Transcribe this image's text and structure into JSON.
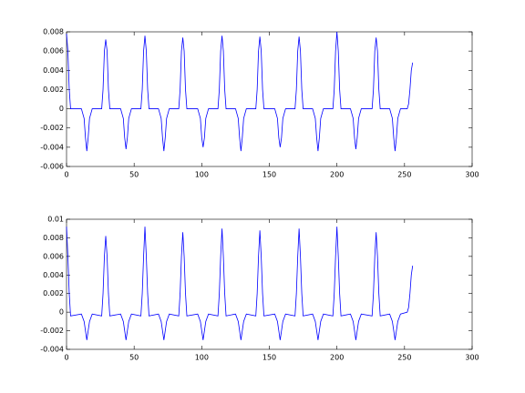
{
  "chart_data": [
    {
      "type": "line",
      "color": "#0000ff",
      "x": [
        0,
        1,
        2,
        3,
        11,
        13,
        14,
        15,
        16,
        17,
        19,
        26,
        27,
        28,
        29,
        30,
        31,
        32,
        40,
        42,
        43,
        44,
        45,
        46,
        48,
        55,
        56,
        57,
        58,
        59,
        60,
        61,
        68,
        70,
        71,
        72,
        73,
        74,
        76,
        83,
        84,
        85,
        86,
        87,
        88,
        89,
        97,
        99,
        100,
        101,
        102,
        103,
        105,
        112,
        113,
        114,
        115,
        116,
        117,
        118,
        125,
        127,
        128,
        129,
        130,
        131,
        133,
        140,
        141,
        142,
        143,
        144,
        145,
        146,
        154,
        156,
        157,
        158,
        159,
        160,
        162,
        169,
        170,
        171,
        172,
        173,
        174,
        175,
        182,
        184,
        185,
        186,
        187,
        188,
        190,
        197,
        198,
        199,
        200,
        201,
        202,
        203,
        210,
        212,
        213,
        214,
        215,
        216,
        218,
        226,
        227,
        228,
        229,
        230,
        231,
        232,
        239,
        241,
        242,
        243,
        244,
        245,
        247,
        252,
        253,
        254,
        255,
        256
      ],
      "values": [
        0.0078,
        0.006,
        0.002,
        0,
        0,
        -0.001,
        -0.003,
        -0.0044,
        -0.003,
        -0.001,
        0,
        0,
        0.002,
        0.006,
        0.0072,
        0.006,
        0.002,
        0,
        0,
        -0.001,
        -0.003,
        -0.0042,
        -0.003,
        -0.001,
        0,
        0,
        0.002,
        0.006,
        0.0076,
        0.006,
        0.002,
        0,
        0,
        -0.001,
        -0.003,
        -0.0044,
        -0.003,
        -0.001,
        0,
        0,
        0.002,
        0.006,
        0.0074,
        0.006,
        0.002,
        0,
        0,
        -0.001,
        -0.003,
        -0.004,
        -0.003,
        -0.001,
        0,
        0,
        0.002,
        0.006,
        0.0076,
        0.006,
        0.002,
        0,
        0,
        -0.001,
        -0.003,
        -0.0044,
        -0.003,
        -0.001,
        0,
        0,
        0.002,
        0.006,
        0.0075,
        0.006,
        0.002,
        0,
        0,
        -0.001,
        -0.003,
        -0.004,
        -0.003,
        -0.001,
        0,
        0,
        0.002,
        0.006,
        0.0075,
        0.006,
        0.002,
        0,
        0,
        -0.001,
        -0.003,
        -0.0044,
        -0.003,
        -0.001,
        0,
        0,
        0.002,
        0.006,
        0.008,
        0.006,
        0.002,
        0,
        0,
        -0.001,
        -0.003,
        -0.0042,
        -0.003,
        -0.001,
        0,
        0,
        0.002,
        0.006,
        0.0074,
        0.006,
        0.002,
        0,
        0,
        -0.001,
        -0.003,
        -0.0044,
        -0.003,
        -0.001,
        0,
        0,
        0.0005,
        0.002,
        0.004,
        0.0048
      ],
      "xlim": [
        0,
        300
      ],
      "xticks": [
        0,
        50,
        100,
        150,
        200,
        250,
        300
      ],
      "ylim": [
        -0.006,
        0.008
      ],
      "yticks": [
        -0.006,
        -0.004,
        -0.002,
        0,
        0.002,
        0.004,
        0.006,
        0.008
      ]
    },
    {
      "type": "line",
      "color": "#0000ff",
      "x": [
        0,
        1,
        2,
        3,
        11,
        13,
        14,
        15,
        16,
        17,
        19,
        26,
        27,
        28,
        29,
        30,
        31,
        32,
        40,
        42,
        43,
        44,
        45,
        46,
        48,
        55,
        56,
        57,
        58,
        59,
        60,
        61,
        68,
        70,
        71,
        72,
        73,
        74,
        76,
        83,
        84,
        85,
        86,
        87,
        88,
        89,
        97,
        99,
        100,
        101,
        102,
        103,
        105,
        112,
        113,
        114,
        115,
        116,
        117,
        118,
        125,
        127,
        128,
        129,
        130,
        131,
        133,
        140,
        141,
        142,
        143,
        144,
        145,
        146,
        154,
        156,
        157,
        158,
        159,
        160,
        162,
        169,
        170,
        171,
        172,
        173,
        174,
        175,
        182,
        184,
        185,
        186,
        187,
        188,
        190,
        197,
        198,
        199,
        200,
        201,
        202,
        203,
        210,
        212,
        213,
        214,
        215,
        216,
        218,
        226,
        227,
        228,
        229,
        230,
        231,
        232,
        239,
        241,
        242,
        243,
        244,
        245,
        247,
        252,
        253,
        254,
        255,
        256
      ],
      "values": [
        0.0092,
        0.006,
        0.002,
        -0.0004,
        -0.0002,
        -0.001,
        -0.002,
        -0.003,
        -0.002,
        -0.001,
        -0.0002,
        -0.0004,
        0.002,
        0.006,
        0.0082,
        0.006,
        0.002,
        -0.0004,
        -0.0002,
        -0.001,
        -0.002,
        -0.003,
        -0.002,
        -0.001,
        -0.0002,
        -0.0004,
        0.002,
        0.006,
        0.0092,
        0.006,
        0.002,
        -0.0004,
        -0.0002,
        -0.001,
        -0.002,
        -0.003,
        -0.002,
        -0.001,
        -0.0002,
        -0.0004,
        0.002,
        0.006,
        0.0086,
        0.006,
        0.002,
        -0.0004,
        -0.0002,
        -0.001,
        -0.002,
        -0.003,
        -0.002,
        -0.001,
        -0.0002,
        -0.0004,
        0.002,
        0.006,
        0.009,
        0.006,
        0.002,
        -0.0004,
        -0.0002,
        -0.001,
        -0.002,
        -0.003,
        -0.002,
        -0.001,
        -0.0002,
        -0.0004,
        0.002,
        0.006,
        0.0088,
        0.006,
        0.002,
        -0.0004,
        -0.0002,
        -0.001,
        -0.002,
        -0.003,
        -0.002,
        -0.001,
        -0.0002,
        -0.0004,
        0.002,
        0.006,
        0.009,
        0.006,
        0.002,
        -0.0004,
        -0.0002,
        -0.001,
        -0.002,
        -0.003,
        -0.002,
        -0.001,
        -0.0002,
        -0.0004,
        0.002,
        0.006,
        0.0092,
        0.006,
        0.002,
        -0.0004,
        -0.0002,
        -0.001,
        -0.002,
        -0.003,
        -0.002,
        -0.001,
        -0.0002,
        -0.0004,
        0.002,
        0.006,
        0.0086,
        0.006,
        0.002,
        -0.0004,
        -0.0002,
        -0.001,
        -0.002,
        -0.003,
        -0.002,
        -0.001,
        -0.0002,
        0,
        0.0005,
        0.002,
        0.004,
        0.005
      ],
      "xlim": [
        0,
        300
      ],
      "xticks": [
        0,
        50,
        100,
        150,
        200,
        250,
        300
      ],
      "ylim": [
        -0.004,
        0.01
      ],
      "yticks": [
        -0.004,
        -0.002,
        0,
        0.002,
        0.004,
        0.006,
        0.008,
        0.01
      ]
    }
  ]
}
